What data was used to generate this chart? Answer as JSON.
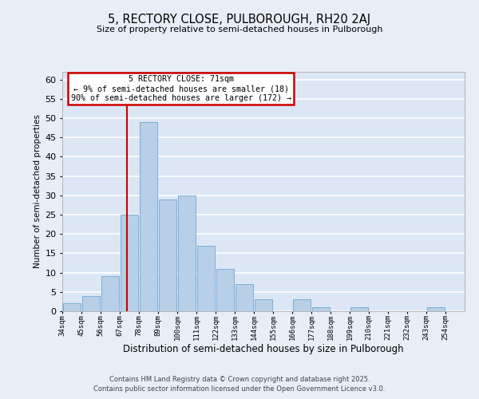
{
  "title": "5, RECTORY CLOSE, PULBOROUGH, RH20 2AJ",
  "subtitle": "Size of property relative to semi-detached houses in Pulborough",
  "xlabel": "Distribution of semi-detached houses by size in Pulborough",
  "ylabel": "Number of semi-detached properties",
  "bar_left_edges": [
    34,
    45,
    56,
    67,
    78,
    89,
    100,
    111,
    122,
    133,
    144,
    155,
    166,
    177,
    188,
    199,
    210,
    221,
    232,
    243
  ],
  "bar_heights": [
    2,
    4,
    9,
    25,
    49,
    29,
    30,
    17,
    11,
    7,
    3,
    0,
    3,
    1,
    0,
    1,
    0,
    0,
    0,
    1
  ],
  "bin_width": 11,
  "tick_labels": [
    "34sqm",
    "45sqm",
    "56sqm",
    "67sqm",
    "78sqm",
    "89sqm",
    "100sqm",
    "111sqm",
    "122sqm",
    "133sqm",
    "144sqm",
    "155sqm",
    "166sqm",
    "177sqm",
    "188sqm",
    "199sqm",
    "210sqm",
    "221sqm",
    "232sqm",
    "243sqm",
    "254sqm"
  ],
  "bar_color": "#b8cfe8",
  "bar_edge_color": "#7aaed6",
  "fig_bg_color": "#e8eef8",
  "ax_bg_color": "#dce6f5",
  "grid_color": "#ffffff",
  "ylim": [
    0,
    62
  ],
  "yticks": [
    0,
    5,
    10,
    15,
    20,
    25,
    30,
    35,
    40,
    45,
    50,
    55,
    60
  ],
  "xlim_min": 34,
  "xlim_max": 265,
  "vline_x": 71,
  "vline_color": "#cc0000",
  "annotation_title": "5 RECTORY CLOSE: 71sqm",
  "annotation_line1": "← 9% of semi-detached houses are smaller (18)",
  "annotation_line2": "90% of semi-detached houses are larger (172) →",
  "annotation_box_color": "#cc0000",
  "footer_line1": "Contains HM Land Registry data © Crown copyright and database right 2025.",
  "footer_line2": "Contains public sector information licensed under the Open Government Licence v3.0."
}
